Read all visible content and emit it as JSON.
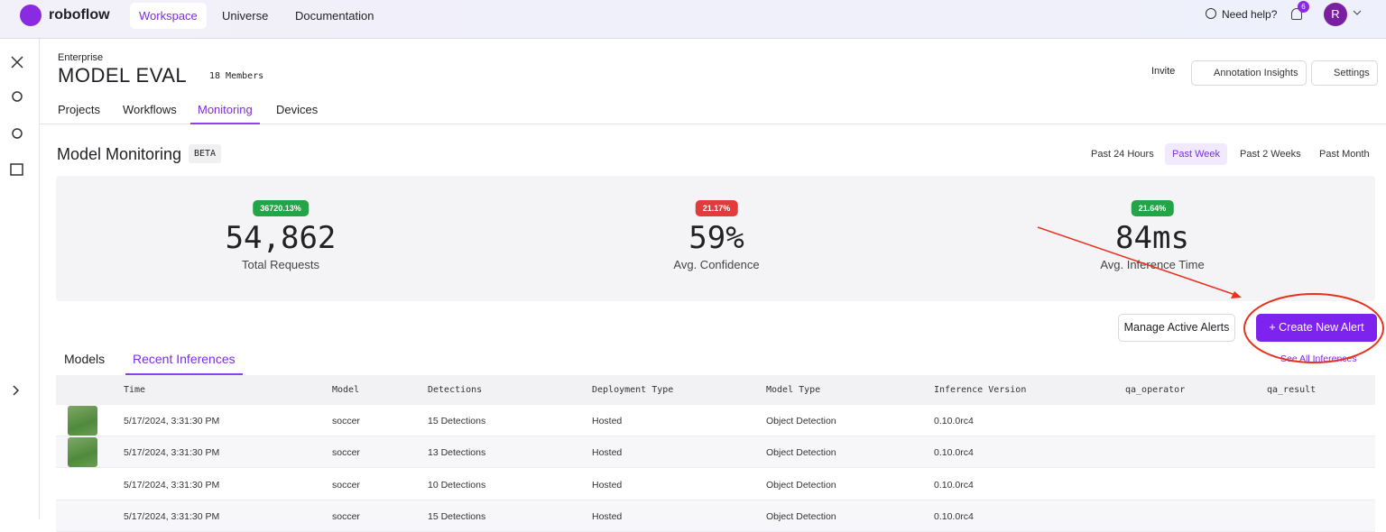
{
  "nav": {
    "brand": "roboflow",
    "tabs": [
      "Workspace",
      "Universe",
      "Documentation"
    ],
    "help": "Need help?",
    "notifications": "6",
    "avatar": "R"
  },
  "header": {
    "org": "Enterprise",
    "title": "MODEL EVAL",
    "members": "18 Members",
    "actions": [
      "Invite",
      "Annotation Insights",
      "Settings"
    ]
  },
  "tabs": [
    "Projects",
    "Workflows",
    "Monitoring",
    "Devices"
  ],
  "monitoring": {
    "title": "Model Monitoring",
    "badge": "BETA",
    "ranges": [
      "Past 24 Hours",
      "Past Week",
      "Past 2 Weeks",
      "Past Month"
    ]
  },
  "stats": [
    {
      "change": "36720.13%",
      "value": "54,862",
      "label": "Total Requests"
    },
    {
      "change": "21.17%",
      "value": "59%",
      "label": "Avg. Confidence"
    },
    {
      "change": "21.64%",
      "value": "84ms",
      "label": "Avg. Inference Time"
    }
  ],
  "alerts": {
    "manage": "Manage Active Alerts",
    "create": "+ Create New Alert"
  },
  "subtabs": [
    "Models",
    "Recent Inferences"
  ],
  "see_all": "See All Inferences",
  "table": {
    "columns": [
      "Time",
      "Model",
      "Detections",
      "Deployment Type",
      "Model Type",
      "Inference Version",
      "qa_operator",
      "qa_result"
    ],
    "rows": [
      [
        "5/17/2024, 3:31:30 PM",
        "soccer",
        "15 Detections",
        "Hosted",
        "Object Detection",
        "0.10.0rc4"
      ],
      [
        "5/17/2024, 3:31:30 PM",
        "soccer",
        "13 Detections",
        "Hosted",
        "Object Detection",
        "0.10.0rc4"
      ],
      [
        "5/17/2024, 3:31:30 PM",
        "soccer",
        "10 Detections",
        "Hosted",
        "Object Detection",
        "0.10.0rc4"
      ],
      [
        "5/17/2024, 3:31:30 PM",
        "soccer",
        "15 Detections",
        "Hosted",
        "Object Detection",
        "0.10.0rc4"
      ]
    ]
  }
}
